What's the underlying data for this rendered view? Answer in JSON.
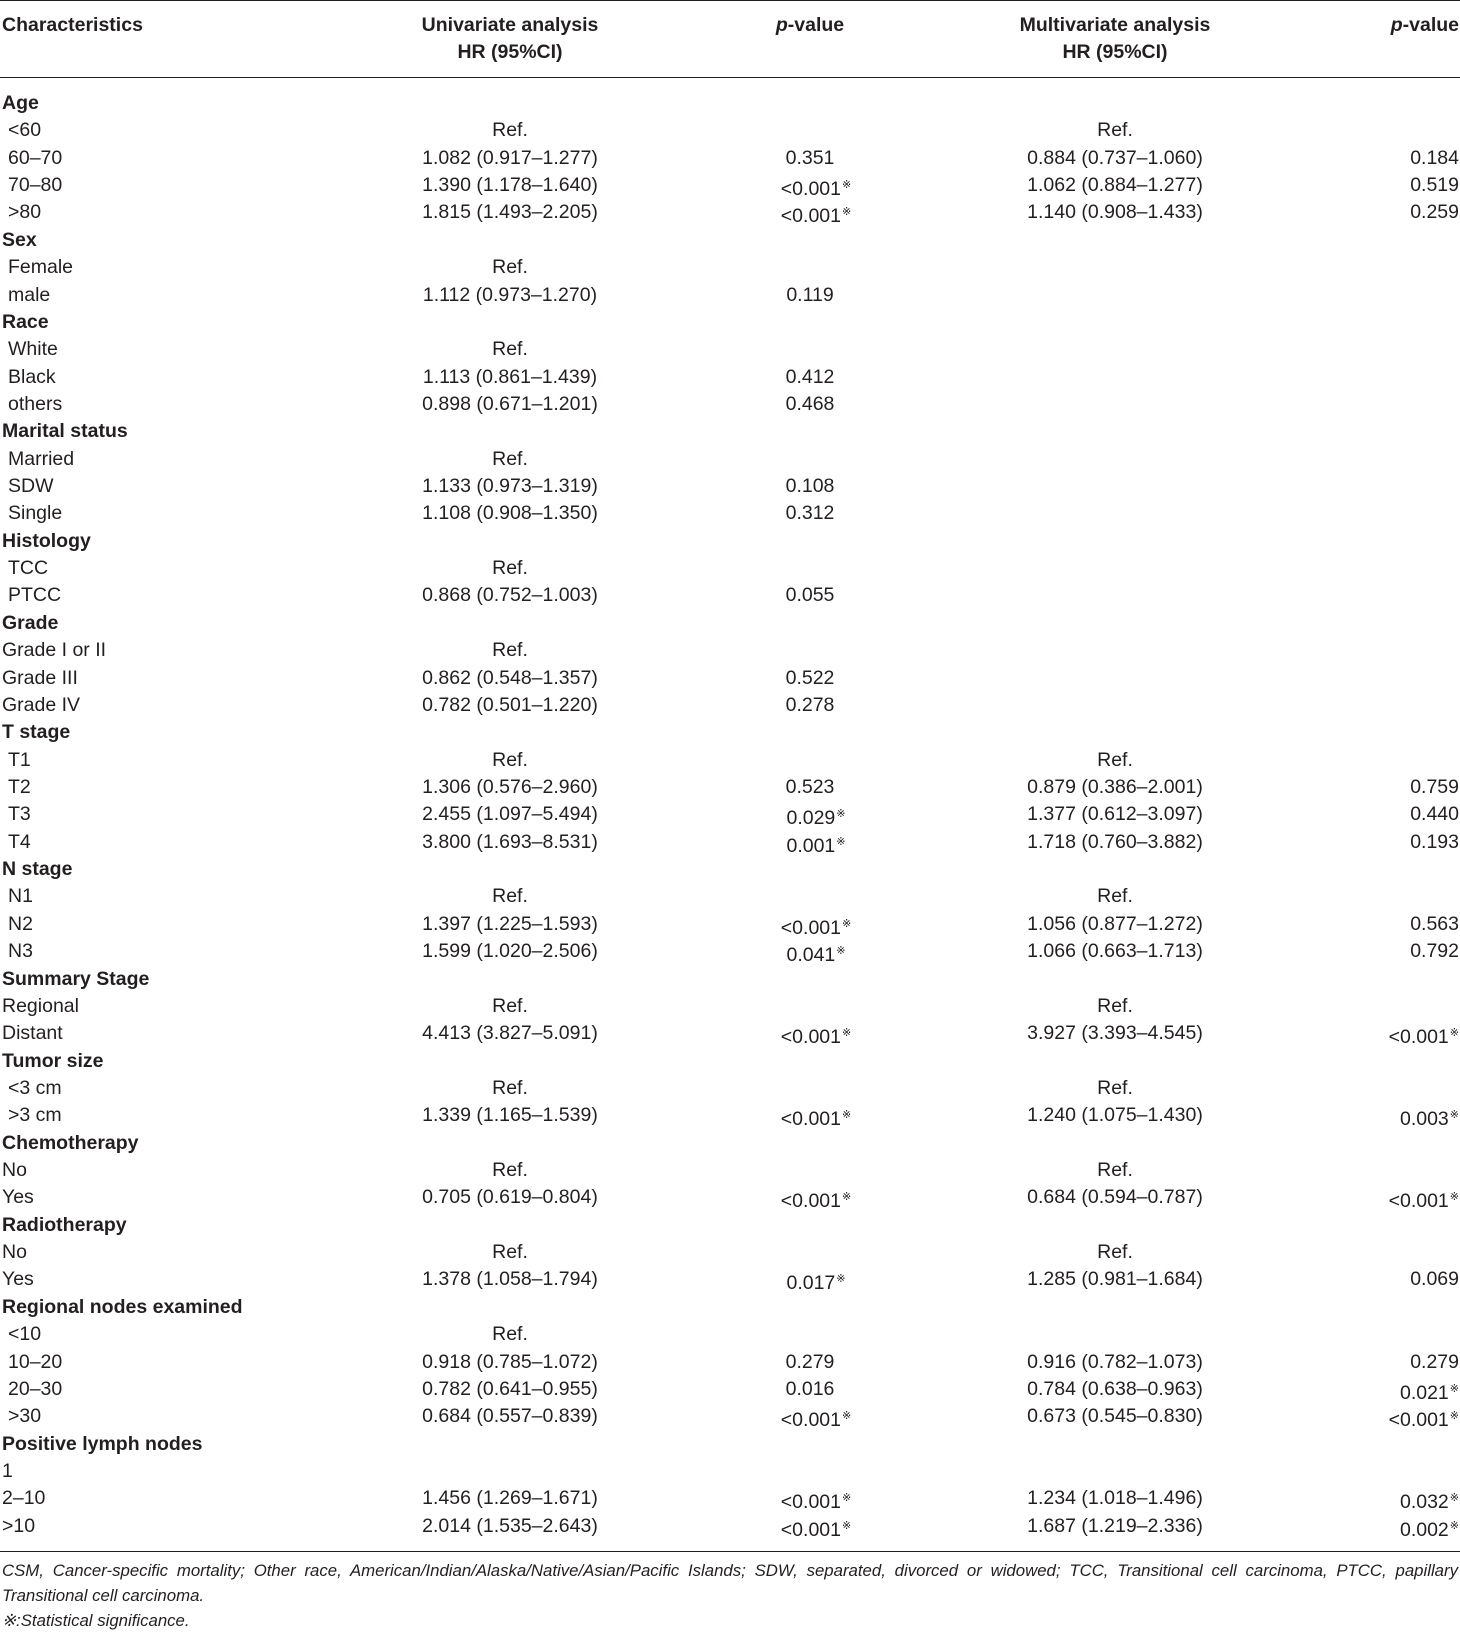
{
  "header": {
    "characteristics": "Characteristics",
    "univariate_line1": "Univariate analysis",
    "univariate_line2": "HR (95%CI)",
    "p_italic": "p",
    "p_rest": "-value",
    "multivariate_line1": "Multivariate analysis",
    "multivariate_line2": "HR (95%CI)"
  },
  "rows": [
    {
      "type": "group",
      "label": "Age"
    },
    {
      "label": "<60",
      "indent": true,
      "uni": "Ref.",
      "p1": "",
      "multi": "Ref.",
      "p2": ""
    },
    {
      "label": "60–70",
      "indent": true,
      "uni": "1.082 (0.917–1.277)",
      "p1": "0.351",
      "multi": "0.884 (0.737–1.060)",
      "p2": "0.184"
    },
    {
      "label": "70–80",
      "indent": true,
      "uni": "1.390 (1.178–1.640)",
      "p1": "<0.001",
      "p1_sig": true,
      "multi": "1.062 (0.884–1.277)",
      "p2": "0.519"
    },
    {
      "label": ">80",
      "indent": true,
      "uni": "1.815 (1.493–2.205)",
      "p1": "<0.001",
      "p1_sig": true,
      "multi": "1.140 (0.908–1.433)",
      "p2": "0.259"
    },
    {
      "type": "group",
      "label": "Sex"
    },
    {
      "label": "Female",
      "indent": true,
      "uni": "Ref.",
      "p1": "",
      "multi": "",
      "p2": ""
    },
    {
      "label": "male",
      "indent": true,
      "uni": "1.112 (0.973–1.270)",
      "p1": "0.119",
      "multi": "",
      "p2": ""
    },
    {
      "type": "group",
      "label": "Race"
    },
    {
      "label": "White",
      "indent": true,
      "uni": "Ref.",
      "p1": "",
      "multi": "",
      "p2": ""
    },
    {
      "label": "Black",
      "indent": true,
      "uni": "1.113 (0.861–1.439)",
      "p1": "0.412",
      "multi": "",
      "p2": ""
    },
    {
      "label": "others",
      "indent": true,
      "uni": "0.898 (0.671–1.201)",
      "p1": "0.468",
      "multi": "",
      "p2": ""
    },
    {
      "type": "group",
      "label": "Marital status"
    },
    {
      "label": "Married",
      "indent": true,
      "uni": "Ref.",
      "p1": "",
      "multi": "",
      "p2": ""
    },
    {
      "label": "SDW",
      "indent": true,
      "uni": "1.133 (0.973–1.319)",
      "p1": "0.108",
      "multi": "",
      "p2": ""
    },
    {
      "label": "Single",
      "indent": true,
      "uni": "1.108 (0.908–1.350)",
      "p1": "0.312",
      "multi": "",
      "p2": ""
    },
    {
      "type": "group",
      "label": "Histology"
    },
    {
      "label": "TCC",
      "indent": true,
      "uni": "Ref.",
      "p1": "",
      "multi": "",
      "p2": ""
    },
    {
      "label": "PTCC",
      "indent": true,
      "uni": "0.868 (0.752–1.003)",
      "p1": "0.055",
      "multi": "",
      "p2": ""
    },
    {
      "type": "group",
      "label": "Grade"
    },
    {
      "label": "Grade I or II",
      "indent": false,
      "uni": "Ref.",
      "p1": "",
      "multi": "",
      "p2": ""
    },
    {
      "label": "Grade III",
      "indent": false,
      "uni": "0.862 (0.548–1.357)",
      "p1": "0.522",
      "multi": "",
      "p2": ""
    },
    {
      "label": "Grade IV",
      "indent": false,
      "uni": "0.782 (0.501–1.220)",
      "p1": "0.278",
      "multi": "",
      "p2": ""
    },
    {
      "type": "group",
      "label": "T stage"
    },
    {
      "label": "T1",
      "indent": true,
      "uni": "Ref.",
      "p1": "",
      "multi": "Ref.",
      "p2": ""
    },
    {
      "label": "T2",
      "indent": true,
      "uni": "1.306 (0.576–2.960)",
      "p1": "0.523",
      "multi": "0.879 (0.386–2.001)",
      "p2": "0.759"
    },
    {
      "label": "T3",
      "indent": true,
      "uni": "2.455 (1.097–5.494)",
      "p1": "0.029",
      "p1_sig": true,
      "multi": "1.377 (0.612–3.097)",
      "p2": "0.440"
    },
    {
      "label": "T4",
      "indent": true,
      "uni": "3.800 (1.693–8.531)",
      "p1": "0.001",
      "p1_sig": true,
      "multi": "1.718 (0.760–3.882)",
      "p2": "0.193"
    },
    {
      "type": "group",
      "label": "N stage"
    },
    {
      "label": "N1",
      "indent": true,
      "uni": "Ref.",
      "p1": "",
      "multi": "Ref.",
      "p2": ""
    },
    {
      "label": "N2",
      "indent": true,
      "uni": "1.397 (1.225–1.593)",
      "p1": "<0.001",
      "p1_sig": true,
      "multi": "1.056 (0.877–1.272)",
      "p2": "0.563"
    },
    {
      "label": "N3",
      "indent": true,
      "uni": "1.599 (1.020–2.506)",
      "p1": "0.041",
      "p1_sig": true,
      "multi": "1.066 (0.663–1.713)",
      "p2": "0.792"
    },
    {
      "type": "group",
      "label": "Summary Stage"
    },
    {
      "label": "Regional",
      "indent": false,
      "uni": "Ref.",
      "p1": "",
      "multi": "Ref.",
      "p2": ""
    },
    {
      "label": "Distant",
      "indent": false,
      "uni": "4.413 (3.827–5.091)",
      "p1": "<0.001",
      "p1_sig": true,
      "multi": "3.927 (3.393–4.545)",
      "p2": "<0.001",
      "p2_sig": true
    },
    {
      "type": "group",
      "label": "Tumor size"
    },
    {
      "label": "<3 cm",
      "indent": true,
      "uni": "Ref.",
      "p1": "",
      "multi": "Ref.",
      "p2": ""
    },
    {
      "label": ">3 cm",
      "indent": true,
      "uni": "1.339 (1.165–1.539)",
      "p1": "<0.001",
      "p1_sig": true,
      "multi": "1.240 (1.075–1.430)",
      "p2": "0.003",
      "p2_sig": true
    },
    {
      "type": "group",
      "label": "Chemotherapy"
    },
    {
      "label": "No",
      "indent": false,
      "uni": "Ref.",
      "p1": "",
      "multi": "Ref.",
      "p2": ""
    },
    {
      "label": "Yes",
      "indent": false,
      "uni": "0.705 (0.619–0.804)",
      "p1": "<0.001",
      "p1_sig": true,
      "multi": "0.684 (0.594–0.787)",
      "p2": "<0.001",
      "p2_sig": true
    },
    {
      "type": "group",
      "label": "Radiotherapy"
    },
    {
      "label": "No",
      "indent": false,
      "uni": "Ref.",
      "p1": "",
      "multi": "Ref.",
      "p2": ""
    },
    {
      "label": "Yes",
      "indent": false,
      "uni": "1.378 (1.058–1.794)",
      "p1": "0.017",
      "p1_sig": true,
      "multi": "1.285 (0.981–1.684)",
      "p2": "0.069"
    },
    {
      "type": "group",
      "label": "Regional nodes examined"
    },
    {
      "label": "<10",
      "indent": true,
      "uni": "Ref.",
      "p1": "",
      "multi": "",
      "p2": ""
    },
    {
      "label": "10–20",
      "indent": true,
      "uni": "0.918 (0.785–1.072)",
      "p1": "0.279",
      "multi": "0.916 (0.782–1.073)",
      "p2": "0.279"
    },
    {
      "label": "20–30",
      "indent": true,
      "uni": "0.782 (0.641–0.955)",
      "p1": "0.016",
      "multi": "0.784 (0.638–0.963)",
      "p2": "0.021",
      "p2_sig": true
    },
    {
      "label": ">30",
      "indent": true,
      "uni": "0.684 (0.557–0.839)",
      "p1": "<0.001",
      "p1_sig": true,
      "multi": "0.673 (0.545–0.830)",
      "p2": "<0.001",
      "p2_sig": true
    },
    {
      "type": "group",
      "label": "Positive lymph nodes"
    },
    {
      "label": "1",
      "indent": false,
      "uni": "",
      "p1": "",
      "multi": "",
      "p2": ""
    },
    {
      "label": "2–10",
      "indent": false,
      "uni": "1.456 (1.269–1.671)",
      "p1": "<0.001",
      "p1_sig": true,
      "multi": "1.234 (1.018–1.496)",
      "p2": "0.032",
      "p2_sig": true
    },
    {
      "label": ">10",
      "indent": false,
      "uni": "2.014 (1.535–2.643)",
      "p1": "<0.001",
      "p1_sig": true,
      "multi": "1.687 (1.219–2.336)",
      "p2": "0.002",
      "p2_sig": true
    }
  ],
  "footnote": {
    "text": "CSM, Cancer-specific mortality; Other race, American/Indian/Alaska/Native/Asian/Pacific Islands; SDW, separated, divorced or widowed; TCC, Transitional cell carcinoma, PTCC, papillary Transitional cell carcinoma.",
    "significance": "※:Statistical significance."
  }
}
